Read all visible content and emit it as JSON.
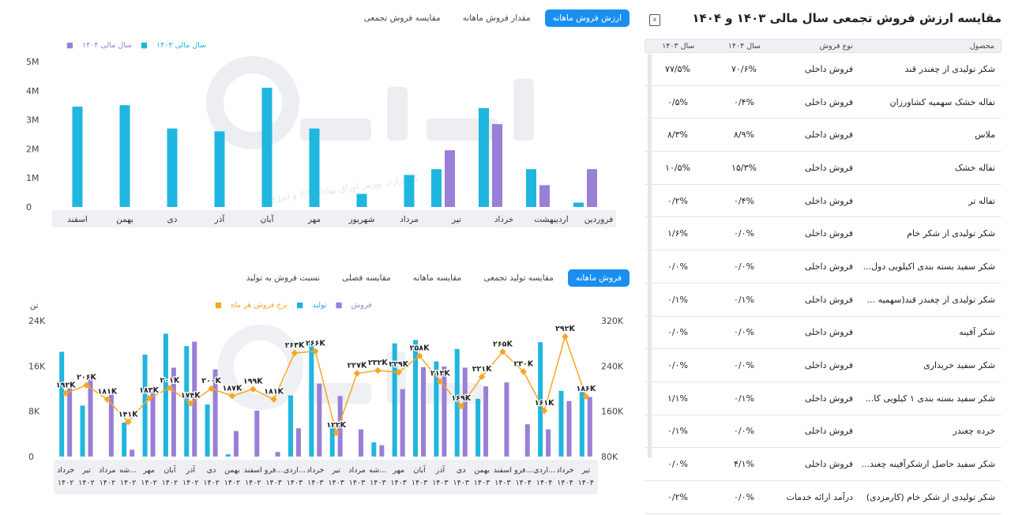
{
  "table": {
    "title": "مقایسه ارزش فروش تجمعی سال مالی ۱۴۰۳ و ۱۴۰۴",
    "headers": {
      "product": "محصول",
      "type": "نوع فروش",
      "y1404": "سال ۱۴۰۴",
      "y1403": "سال ۱۴۰۳"
    },
    "rows": [
      {
        "product": "شکر تولیدی از چغندر قند",
        "type": "فروش داخلی",
        "y1404": "۷۰/۶%",
        "y1403": "۷۷/۵%"
      },
      {
        "product": "تفاله خشک سهمیه کشاورزان",
        "type": "فروش داخلی",
        "y1404": "۰/۴%",
        "y1403": "۰/۵%"
      },
      {
        "product": "ملاس",
        "type": "فروش داخلی",
        "y1404": "۸/۹%",
        "y1403": "۸/۳%"
      },
      {
        "product": "تفاله خشک",
        "type": "فروش داخلی",
        "y1404": "۱۵/۳%",
        "y1403": "۱۰/۵%"
      },
      {
        "product": "تفاله تر",
        "type": "فروش داخلی",
        "y1404": "۰/۴%",
        "y1403": "۰/۲%"
      },
      {
        "product": "شکر تولیدی از شکر خام",
        "type": "فروش داخلی",
        "y1404": "۰/۰%",
        "y1403": "۱/۶%"
      },
      {
        "product": "شکر سفید بسته بندی اکیلویی دول...",
        "type": "فروش داخلی",
        "y1404": "۰/۰%",
        "y1403": "۰/۰%"
      },
      {
        "product": "شکر تولیدی از چغندر قند(سهمیه ...",
        "type": "فروش داخلی",
        "y1404": "۰/۱%",
        "y1403": "۰/۱%"
      },
      {
        "product": "شکر آفینه",
        "type": "فروش داخلی",
        "y1404": "۰/۰%",
        "y1403": "۰/۰%"
      },
      {
        "product": "شکر سفید خریداری",
        "type": "فروش داخلی",
        "y1404": "۰/۰%",
        "y1403": "۰/۰%"
      },
      {
        "product": "شکر سفید بسته بندی ۱ کیلویی کا...",
        "type": "فروش داخلی",
        "y1404": "۰/۱%",
        "y1403": "۱/۱%"
      },
      {
        "product": "خرده چغندر",
        "type": "فروش داخلی",
        "y1404": "۰/۰%",
        "y1403": "۰/۱%"
      },
      {
        "product": "شکر سفید حاصل ازشکرآفینه چغند...",
        "type": "فروش داخلی",
        "y1404": "۴/۱%",
        "y1403": "۰/۰%"
      },
      {
        "product": "شکر تولیدی از شکر خام (کارمزدی)",
        "type": "درآمد ارائه خدمات",
        "y1404": "۰/۰%",
        "y1403": "۰/۲%"
      }
    ]
  },
  "top_tabs": [
    {
      "label": "ارزش فروش ماهانه",
      "active": true
    },
    {
      "label": "مقدار فروش ماهانه",
      "active": false
    },
    {
      "label": "مقایسه فروش تجمعی",
      "active": false
    }
  ],
  "bottom_tabs": [
    {
      "label": "فروش ماهانه",
      "active": true
    },
    {
      "label": "مقایسه تولید تجمعی",
      "active": false
    },
    {
      "label": "مقایسه ماهانه",
      "active": false
    },
    {
      "label": "مقایسه فصلی",
      "active": false
    },
    {
      "label": "نسبت فروش به تولید",
      "active": false
    }
  ],
  "colors": {
    "blue": "#1fb6e0",
    "purple": "#9a7fd6",
    "orange": "#f5a623",
    "accent": "#1a8ff0"
  },
  "watermark": {
    "logo": "آگاه",
    "tagline": "کارگزاری بورس اوراق بهادار، کالا و انرژی"
  },
  "chart_data": [
    {
      "type": "bar",
      "legend": [
        "سال مالی ۱۴۰۴",
        "سال مالی ۱۴۰۳"
      ],
      "categories": [
        "فروردین",
        "اردیبهشت",
        "خرداد",
        "تیر",
        "مرداد",
        "شهریور",
        "مهر",
        "آبان",
        "آذر",
        "دی",
        "بهمن",
        "اسفند"
      ],
      "series": [
        {
          "name": "سال مالی ۱۴۰۴",
          "values": [
            1.3,
            0.75,
            2.85,
            1.95,
            null,
            null,
            null,
            null,
            null,
            null,
            null,
            null
          ]
        },
        {
          "name": "سال مالی ۱۴۰۳",
          "values": [
            0.15,
            1.3,
            3.4,
            1.3,
            1.1,
            0.45,
            2.7,
            4.1,
            2.6,
            2.7,
            3.5,
            3.45
          ]
        }
      ],
      "yticks": [
        "5M",
        "4M",
        "3M",
        "2M",
        "1M",
        "0"
      ],
      "ylim": [
        0,
        5
      ]
    },
    {
      "type": "bar+line",
      "legend": [
        "فروش",
        "تولید",
        "نرخ فروش هر ماه"
      ],
      "yleft_unit": "تن",
      "yleft_ticks": [
        "24K",
        "16K",
        "8K",
        "0"
      ],
      "yright_ticks": [
        "320K",
        "240K",
        "160K",
        "80K"
      ],
      "ylim_left": [
        0,
        24000
      ],
      "ylim_right": [
        80000,
        320000
      ],
      "categories": [
        "خرداد ۱۴۰۲",
        "تیر ۱۴۰۲",
        "مرداد ۱۴۰۲",
        "شه... ۱۴۰۲",
        "مهر ۱۴۰۲",
        "آبان ۱۴۰۲",
        "آذر ۱۴۰۲",
        "دی ۱۴۰۲",
        "بهمن ۱۴۰۲",
        "اسفند ۱۴۰۲",
        "فرو... ۱۴۰۳",
        "اردی... ۱۴۰۳",
        "خرداد ۱۴۰۳",
        "تیر ۱۴۰۳",
        "مرداد ۱۴۰۳",
        "شه... ۱۴۰۳",
        "مهر ۱۴۰۳",
        "آبان ۱۴۰۳",
        "آذر ۱۴۰۳",
        "دی ۱۴۰۳",
        "بهمن ۱۴۰۳",
        "اسفند ۱۴۰۳",
        "فرو... ۱۴۰۴",
        "اردی... ۱۴۰۴",
        "خرداد ۱۴۰۴",
        "تیر ۱۴۰۴"
      ],
      "production": [
        18500,
        9000,
        0,
        6000,
        18000,
        21700,
        19500,
        9200,
        400,
        0,
        0,
        10800,
        20200,
        5500,
        0,
        2500,
        20000,
        20600,
        16800,
        19000,
        10200,
        0,
        0,
        20200,
        11600,
        12000
      ],
      "sales": [
        12100,
        13700,
        11800,
        1200,
        11500,
        15700,
        20300,
        15400,
        4500,
        8100,
        800,
        5000,
        12900,
        10700,
        4800,
        2000,
        11900,
        15800,
        15900,
        15700,
        12400,
        13100,
        5700,
        4800,
        9800,
        10500
      ],
      "rate": [
        192000,
        206000,
        181000,
        141000,
        183000,
        201000,
        174000,
        200000,
        187000,
        199000,
        181000,
        263000,
        266000,
        122000,
        227000,
        232000,
        229000,
        258000,
        213000,
        169000,
        221000,
        265000,
        230000,
        161000,
        292000,
        186000
      ],
      "rate_labels": [
        "۱۹۲K",
        "۲۰۶K",
        "۱۸۱K",
        "۱۴۱K",
        "۱۸۳K",
        "۲۰۱K",
        "۱۷۴K",
        "۲۰۰K",
        "۱۸۷K",
        "۱۹۹K",
        "۱۸۱K",
        "۲۶۳K",
        "۲۶۶K",
        "۱۲۲K",
        "۲۲۷K",
        "۲۳۲K",
        "۲۲۹K",
        "۲۵۸K",
        "۲۱۳K",
        "۱۶۹K",
        "۲۲۱K",
        "۲۶۵K",
        "۲۳۰K",
        "۱۶۱K",
        "۲۹۲K",
        "۱۸۶K"
      ]
    }
  ]
}
